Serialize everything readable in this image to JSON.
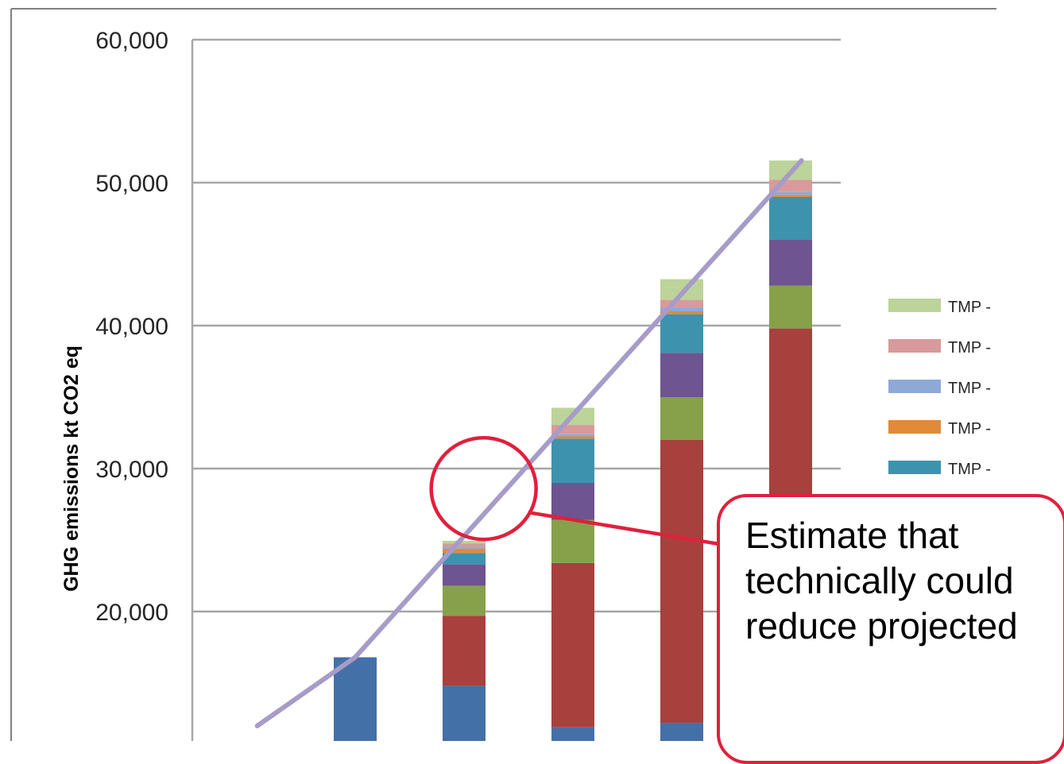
{
  "chart_data": {
    "type": "bar",
    "stacked": true,
    "ylabel": "GHG emissions  kt CO2 eq",
    "ylim": [
      12000,
      60000
    ],
    "yticks": [
      20000,
      30000,
      40000,
      50000,
      60000
    ],
    "ytick_labels": [
      "20,000",
      "30,000",
      "40,000",
      "50,000",
      "60,000"
    ],
    "grid": true,
    "legend_position": "right",
    "colors": {
      "blue": "#4470a8",
      "red": "#a8403e",
      "green": "#86a14a",
      "purple": "#6e5490",
      "teal": "#3d93ae",
      "orange": "#e08a3a",
      "lightblue": "#8ea9d8",
      "pink": "#d89a9a",
      "lightgreen": "#bcd39a",
      "trend": "#a79bc8"
    },
    "bars": [
      {
        "total": 16800,
        "segments": [
          {
            "color": "blue",
            "value": 16800
          }
        ]
      },
      {
        "total": 24950,
        "segments": [
          {
            "color": "blue",
            "value": 14800
          },
          {
            "color": "red",
            "value": 4900
          },
          {
            "color": "green",
            "value": 2100
          },
          {
            "color": "purple",
            "value": 1500
          },
          {
            "color": "teal",
            "value": 800
          },
          {
            "color": "orange",
            "value": 300
          },
          {
            "color": "lightblue",
            "value": 150
          },
          {
            "color": "pink",
            "value": 200
          },
          {
            "color": "lightgreen",
            "value": 200
          }
        ]
      },
      {
        "total": 34250,
        "segments": [
          {
            "color": "blue",
            "value": 11900
          },
          {
            "color": "red",
            "value": 11500
          },
          {
            "color": "green",
            "value": 3000
          },
          {
            "color": "purple",
            "value": 2600
          },
          {
            "color": "teal",
            "value": 3100
          },
          {
            "color": "orange",
            "value": 150
          },
          {
            "color": "lightblue",
            "value": 150
          },
          {
            "color": "pink",
            "value": 650
          },
          {
            "color": "lightgreen",
            "value": 1200
          }
        ]
      },
      {
        "total": 43250,
        "segments": [
          {
            "color": "blue",
            "value": 12200
          },
          {
            "color": "red",
            "value": 19800
          },
          {
            "color": "green",
            "value": 3000
          },
          {
            "color": "purple",
            "value": 3100
          },
          {
            "color": "teal",
            "value": 2700
          },
          {
            "color": "orange",
            "value": 200
          },
          {
            "color": "lightblue",
            "value": 250
          },
          {
            "color": "pink",
            "value": 550
          },
          {
            "color": "lightgreen",
            "value": 1450
          }
        ]
      },
      {
        "total": 51550,
        "segments": [
          {
            "color": "red",
            "value": 39800
          },
          {
            "color": "green",
            "value": 3000
          },
          {
            "color": "purple",
            "value": 3200
          },
          {
            "color": "teal",
            "value": 3000
          },
          {
            "color": "orange",
            "value": 150
          },
          {
            "color": "lightblue",
            "value": 200
          },
          {
            "color": "pink",
            "value": 850
          },
          {
            "color": "lightgreen",
            "value": 1350
          }
        ]
      }
    ],
    "trend_line": {
      "color": "trend",
      "points": [
        {
          "bar": -0.9,
          "value": 12000
        },
        {
          "bar": 0.0,
          "value": 16800
        },
        {
          "bar": 4.1,
          "value": 51550
        }
      ]
    },
    "legend": [
      {
        "label": "TMP -",
        "color": "lightgreen"
      },
      {
        "label": "TMP -",
        "color": "pink"
      },
      {
        "label": "TMP -",
        "color": "lightblue"
      },
      {
        "label": "TMP -",
        "color": "orange"
      },
      {
        "label": "TMP -",
        "color": "teal"
      }
    ],
    "highlight_circle": {
      "bar": 1.18,
      "value": 28600,
      "color": "#e0203c"
    }
  },
  "callout": {
    "text": "Estimate that technically could reduce projected",
    "border_color": "#e0203c"
  }
}
